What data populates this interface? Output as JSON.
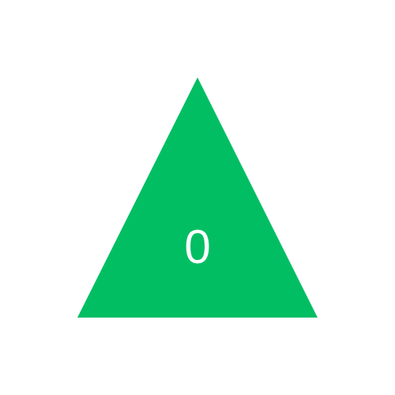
{
  "shape": {
    "type": "triangle",
    "fill_color": "#02BE63",
    "label": "0",
    "label_color": "#FFFFFF"
  },
  "background_color": "#FFFFFF"
}
